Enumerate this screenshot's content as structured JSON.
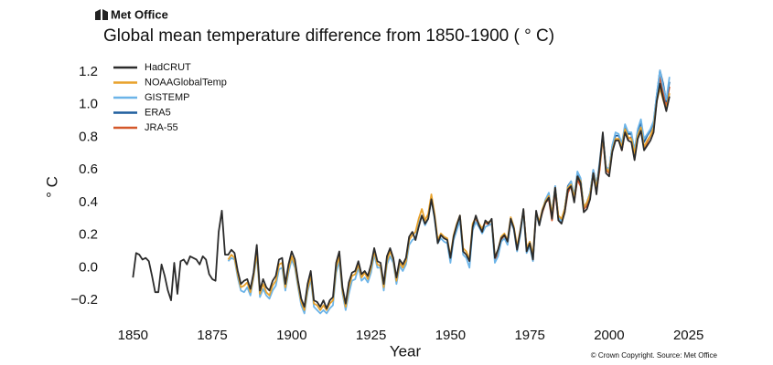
{
  "brand": "Met Office",
  "source": "© Crown Copyright. Source: Met Office",
  "chart_data": {
    "type": "line",
    "title": "Global mean temperature difference from 1850-1900 ( ° C)",
    "x_label": "Year",
    "y_label": "° C",
    "xlim": [
      1845,
      2030
    ],
    "ylim": [
      -0.3,
      1.25
    ],
    "xticks": [
      1850,
      1875,
      1900,
      1925,
      1950,
      1975,
      2000,
      2025
    ],
    "yticks": [
      {
        "value": -0.2,
        "label": "−0.2"
      },
      {
        "value": 0,
        "label": "0.0"
      },
      0.2,
      0.4,
      0.6,
      0.8,
      {
        "value": 1,
        "label": "1.0"
      },
      1.2
    ],
    "grid": false,
    "legend": "upper left",
    "x": [
      1850,
      1851,
      1852,
      1853,
      1854,
      1855,
      1856,
      1857,
      1858,
      1859,
      1860,
      1861,
      1862,
      1863,
      1864,
      1865,
      1866,
      1867,
      1868,
      1869,
      1870,
      1871,
      1872,
      1873,
      1874,
      1875,
      1876,
      1877,
      1878,
      1879,
      1880,
      1881,
      1882,
      1883,
      1884,
      1885,
      1886,
      1887,
      1888,
      1889,
      1890,
      1891,
      1892,
      1893,
      1894,
      1895,
      1896,
      1897,
      1898,
      1899,
      1900,
      1901,
      1902,
      1903,
      1904,
      1905,
      1906,
      1907,
      1908,
      1909,
      1910,
      1911,
      1912,
      1913,
      1914,
      1915,
      1916,
      1917,
      1918,
      1919,
      1920,
      1921,
      1922,
      1923,
      1924,
      1925,
      1926,
      1927,
      1928,
      1929,
      1930,
      1931,
      1932,
      1933,
      1934,
      1935,
      1936,
      1937,
      1938,
      1939,
      1940,
      1941,
      1942,
      1943,
      1944,
      1945,
      1946,
      1947,
      1948,
      1949,
      1950,
      1951,
      1952,
      1953,
      1954,
      1955,
      1956,
      1957,
      1958,
      1959,
      1960,
      1961,
      1962,
      1963,
      1964,
      1965,
      1966,
      1967,
      1968,
      1969,
      1970,
      1971,
      1972,
      1973,
      1974,
      1975,
      1976,
      1977,
      1978,
      1979,
      1980,
      1981,
      1982,
      1983,
      1984,
      1985,
      1986,
      1987,
      1988,
      1989,
      1990,
      1991,
      1992,
      1993,
      1994,
      1995,
      1996,
      1997,
      1998,
      1999,
      2000,
      2001,
      2002,
      2003,
      2004,
      2005,
      2006,
      2007,
      2008,
      2009,
      2010,
      2011,
      2012,
      2013,
      2014,
      2015,
      2016,
      2017,
      2018,
      2019
    ],
    "series": [
      {
        "name": "HadCRUT",
        "color": "#2b2b2b",
        "values": [
          -0.06,
          0.09,
          0.08,
          0.05,
          0.06,
          0.04,
          -0.05,
          -0.15,
          -0.15,
          0.02,
          -0.05,
          -0.14,
          -0.2,
          0.03,
          -0.16,
          0.04,
          0.05,
          0.02,
          0.07,
          0.06,
          0.05,
          0.02,
          0.07,
          0.05,
          -0.04,
          -0.07,
          -0.08,
          0.22,
          0.35,
          0.08,
          0.08,
          0.11,
          0.09,
          -0.02,
          -0.1,
          -0.08,
          -0.07,
          -0.13,
          -0.03,
          0.14,
          -0.14,
          -0.07,
          -0.12,
          -0.14,
          -0.08,
          -0.05,
          0.05,
          0.06,
          -0.1,
          0.02,
          0.1,
          0.05,
          -0.08,
          -0.19,
          -0.24,
          -0.1,
          -0.02,
          -0.2,
          -0.21,
          -0.24,
          -0.2,
          -0.25,
          -0.2,
          -0.18,
          0.03,
          0.1,
          -0.12,
          -0.22,
          -0.09,
          -0.03,
          -0.02,
          0.04,
          -0.04,
          -0.02,
          -0.05,
          0.02,
          0.12,
          0.04,
          0.03,
          -0.1,
          0.07,
          0.12,
          0.06,
          -0.06,
          0.05,
          0.02,
          0.06,
          0.19,
          0.22,
          0.17,
          0.25,
          0.32,
          0.27,
          0.3,
          0.42,
          0.31,
          0.15,
          0.2,
          0.18,
          0.17,
          0.06,
          0.19,
          0.26,
          0.32,
          0.1,
          0.08,
          0.04,
          0.25,
          0.32,
          0.26,
          0.22,
          0.29,
          0.27,
          0.3,
          0.06,
          0.11,
          0.18,
          0.2,
          0.16,
          0.3,
          0.24,
          0.11,
          0.22,
          0.36,
          0.1,
          0.15,
          0.05,
          0.35,
          0.26,
          0.35,
          0.4,
          0.43,
          0.3,
          0.49,
          0.29,
          0.27,
          0.34,
          0.48,
          0.5,
          0.4,
          0.56,
          0.52,
          0.34,
          0.36,
          0.42,
          0.58,
          0.45,
          0.63,
          0.83,
          0.58,
          0.56,
          0.71,
          0.78,
          0.78,
          0.72,
          0.83,
          0.78,
          0.77,
          0.66,
          0.79,
          0.84,
          0.72,
          0.75,
          0.78,
          0.83,
          1.02,
          1.13,
          1.04,
          0.96,
          1.05
        ]
      },
      {
        "name": "NOAAGlobalTemp",
        "color": "#e8a22c",
        "values": [
          null,
          null,
          null,
          null,
          null,
          null,
          null,
          null,
          null,
          null,
          null,
          null,
          null,
          null,
          null,
          null,
          null,
          null,
          null,
          null,
          null,
          null,
          null,
          null,
          null,
          null,
          null,
          null,
          null,
          null,
          0.05,
          0.08,
          0.06,
          -0.04,
          -0.12,
          -0.11,
          -0.09,
          -0.15,
          -0.05,
          0.1,
          -0.16,
          -0.1,
          -0.15,
          -0.17,
          -0.11,
          -0.08,
          0.02,
          0.03,
          -0.12,
          -0.01,
          0.07,
          0.02,
          -0.1,
          -0.21,
          -0.26,
          -0.13,
          -0.05,
          -0.22,
          -0.23,
          -0.26,
          -0.23,
          -0.26,
          -0.22,
          -0.2,
          0,
          0.07,
          -0.14,
          -0.24,
          -0.12,
          -0.05,
          -0.04,
          0.02,
          -0.06,
          -0.03,
          -0.07,
          0,
          0.1,
          0.02,
          0.01,
          -0.12,
          0.04,
          0.1,
          0.05,
          -0.08,
          0.03,
          0,
          0.04,
          0.17,
          0.2,
          0.22,
          0.3,
          0.36,
          0.29,
          0.33,
          0.45,
          0.33,
          0.17,
          0.21,
          0.19,
          0.18,
          0.07,
          0.2,
          0.27,
          0.32,
          0.12,
          0.1,
          0.05,
          0.27,
          0.31,
          0.27,
          0.24,
          0.28,
          0.28,
          0.29,
          0.07,
          0.11,
          0.19,
          0.21,
          0.17,
          0.31,
          0.25,
          0.13,
          0.23,
          0.35,
          0.12,
          0.16,
          0.08,
          0.34,
          0.28,
          0.36,
          0.41,
          0.44,
          0.33,
          0.49,
          0.32,
          0.3,
          0.36,
          0.49,
          0.51,
          0.43,
          0.56,
          0.53,
          0.37,
          0.4,
          0.45,
          0.58,
          0.49,
          0.62,
          0.81,
          0.61,
          0.59,
          0.72,
          0.79,
          0.79,
          0.74,
          0.85,
          0.8,
          0.79,
          0.7,
          0.81,
          0.86,
          0.74,
          0.78,
          0.81,
          0.86,
          1.02,
          1.1,
          1.03,
          0.97,
          1.07
        ]
      },
      {
        "name": "GISTEMP",
        "color": "#6cb4e8",
        "values": [
          null,
          null,
          null,
          null,
          null,
          null,
          null,
          null,
          null,
          null,
          null,
          null,
          null,
          null,
          null,
          null,
          null,
          null,
          null,
          null,
          null,
          null,
          null,
          null,
          null,
          null,
          null,
          null,
          null,
          null,
          0.04,
          0.06,
          0.05,
          -0.06,
          -0.14,
          -0.15,
          -0.12,
          -0.17,
          -0.06,
          0.08,
          -0.18,
          -0.13,
          -0.17,
          -0.19,
          -0.14,
          -0.11,
          -0.01,
          0,
          -0.14,
          -0.03,
          0.05,
          0,
          -0.12,
          -0.23,
          -0.28,
          -0.15,
          -0.07,
          -0.24,
          -0.26,
          -0.28,
          -0.26,
          -0.28,
          -0.25,
          -0.23,
          -0.03,
          0.04,
          -0.16,
          -0.26,
          -0.16,
          -0.08,
          -0.07,
          0,
          -0.08,
          -0.06,
          -0.09,
          -0.03,
          0.08,
          0,
          0,
          -0.14,
          0.02,
          0.07,
          0.03,
          -0.1,
          0.01,
          -0.02,
          0.02,
          0.14,
          0.17,
          0.18,
          0.27,
          0.32,
          0.26,
          0.3,
          0.42,
          0.3,
          0.15,
          0.18,
          0.16,
          0.15,
          0.03,
          0.17,
          0.23,
          0.29,
          0.08,
          0.06,
          0,
          0.23,
          0.28,
          0.25,
          0.21,
          0.25,
          0.26,
          0.27,
          0.03,
          0.07,
          0.16,
          0.18,
          0.14,
          0.29,
          0.23,
          0.1,
          0.2,
          0.34,
          0.09,
          0.13,
          0.04,
          0.33,
          0.26,
          0.35,
          0.42,
          0.46,
          0.32,
          0.5,
          0.31,
          0.28,
          0.36,
          0.49,
          0.53,
          0.44,
          0.59,
          0.55,
          0.37,
          0.4,
          0.46,
          0.6,
          0.5,
          0.65,
          0.82,
          0.62,
          0.6,
          0.75,
          0.83,
          0.82,
          0.76,
          0.88,
          0.83,
          0.83,
          0.72,
          0.85,
          0.91,
          0.79,
          0.82,
          0.85,
          0.9,
          1.06,
          1.21,
          1.11,
          1.03,
          1.17
        ]
      },
      {
        "name": "ERA5",
        "color": "#1f5f9e",
        "values": [
          null,
          null,
          null,
          null,
          null,
          null,
          null,
          null,
          null,
          null,
          null,
          null,
          null,
          null,
          null,
          null,
          null,
          null,
          null,
          null,
          null,
          null,
          null,
          null,
          null,
          null,
          null,
          null,
          null,
          null,
          null,
          null,
          null,
          null,
          null,
          null,
          null,
          null,
          null,
          null,
          null,
          null,
          null,
          null,
          null,
          null,
          null,
          null,
          null,
          null,
          null,
          null,
          null,
          null,
          null,
          null,
          null,
          null,
          null,
          null,
          null,
          null,
          null,
          null,
          null,
          null,
          null,
          null,
          null,
          null,
          null,
          null,
          null,
          null,
          null,
          null,
          null,
          null,
          null,
          null,
          null,
          null,
          null,
          null,
          null,
          null,
          null,
          null,
          null,
          null,
          null,
          null,
          null,
          null,
          null,
          null,
          null,
          null,
          null,
          null,
          null,
          null,
          null,
          null,
          null,
          null,
          null,
          null,
          null,
          null,
          null,
          null,
          null,
          null,
          null,
          null,
          null,
          null,
          null,
          null,
          null,
          null,
          null,
          null,
          null,
          null,
          null,
          null,
          null,
          0.35,
          0.42,
          0.45,
          0.32,
          0.5,
          0.31,
          0.29,
          0.36,
          0.5,
          0.53,
          0.44,
          0.57,
          0.54,
          0.37,
          0.4,
          0.46,
          0.6,
          0.51,
          0.63,
          0.81,
          0.62,
          0.6,
          0.75,
          0.81,
          0.81,
          0.76,
          0.86,
          0.82,
          0.82,
          0.71,
          0.84,
          0.89,
          0.77,
          0.81,
          0.84,
          0.89,
          1.06,
          1.21,
          1.13,
          1.02,
          1.14
        ]
      },
      {
        "name": "JRA-55",
        "color": "#d4582a",
        "values": [
          null,
          null,
          null,
          null,
          null,
          null,
          null,
          null,
          null,
          null,
          null,
          null,
          null,
          null,
          null,
          null,
          null,
          null,
          null,
          null,
          null,
          null,
          null,
          null,
          null,
          null,
          null,
          null,
          null,
          null,
          null,
          null,
          null,
          null,
          null,
          null,
          null,
          null,
          null,
          null,
          null,
          null,
          null,
          null,
          null,
          null,
          null,
          null,
          null,
          null,
          null,
          null,
          null,
          null,
          null,
          null,
          null,
          null,
          null,
          null,
          null,
          null,
          null,
          null,
          null,
          null,
          null,
          null,
          null,
          null,
          null,
          null,
          null,
          null,
          null,
          null,
          null,
          null,
          null,
          null,
          null,
          null,
          null,
          null,
          null,
          null,
          null,
          null,
          null,
          null,
          null,
          null,
          null,
          null,
          null,
          null,
          null,
          null,
          null,
          null,
          null,
          null,
          null,
          null,
          null,
          null,
          null,
          null,
          0.3,
          0.26,
          0.24,
          0.28,
          0.26,
          0.27,
          0.05,
          0.08,
          0.17,
          0.2,
          0.15,
          0.28,
          0.24,
          0.11,
          0.21,
          0.35,
          0.12,
          0.15,
          0.05,
          0.32,
          0.27,
          0.34,
          0.4,
          0.42,
          0.29,
          0.47,
          0.3,
          0.28,
          0.34,
          0.46,
          0.5,
          0.41,
          0.54,
          0.5,
          0.36,
          0.38,
          0.44,
          0.57,
          0.47,
          0.6,
          0.8,
          0.6,
          0.58,
          0.72,
          0.78,
          0.79,
          0.72,
          0.84,
          0.79,
          0.8,
          0.68,
          0.81,
          0.85,
          0.73,
          0.77,
          0.81,
          0.85,
          1.03,
          1.17,
          1.08,
          0.99,
          1.11
        ]
      }
    ]
  }
}
